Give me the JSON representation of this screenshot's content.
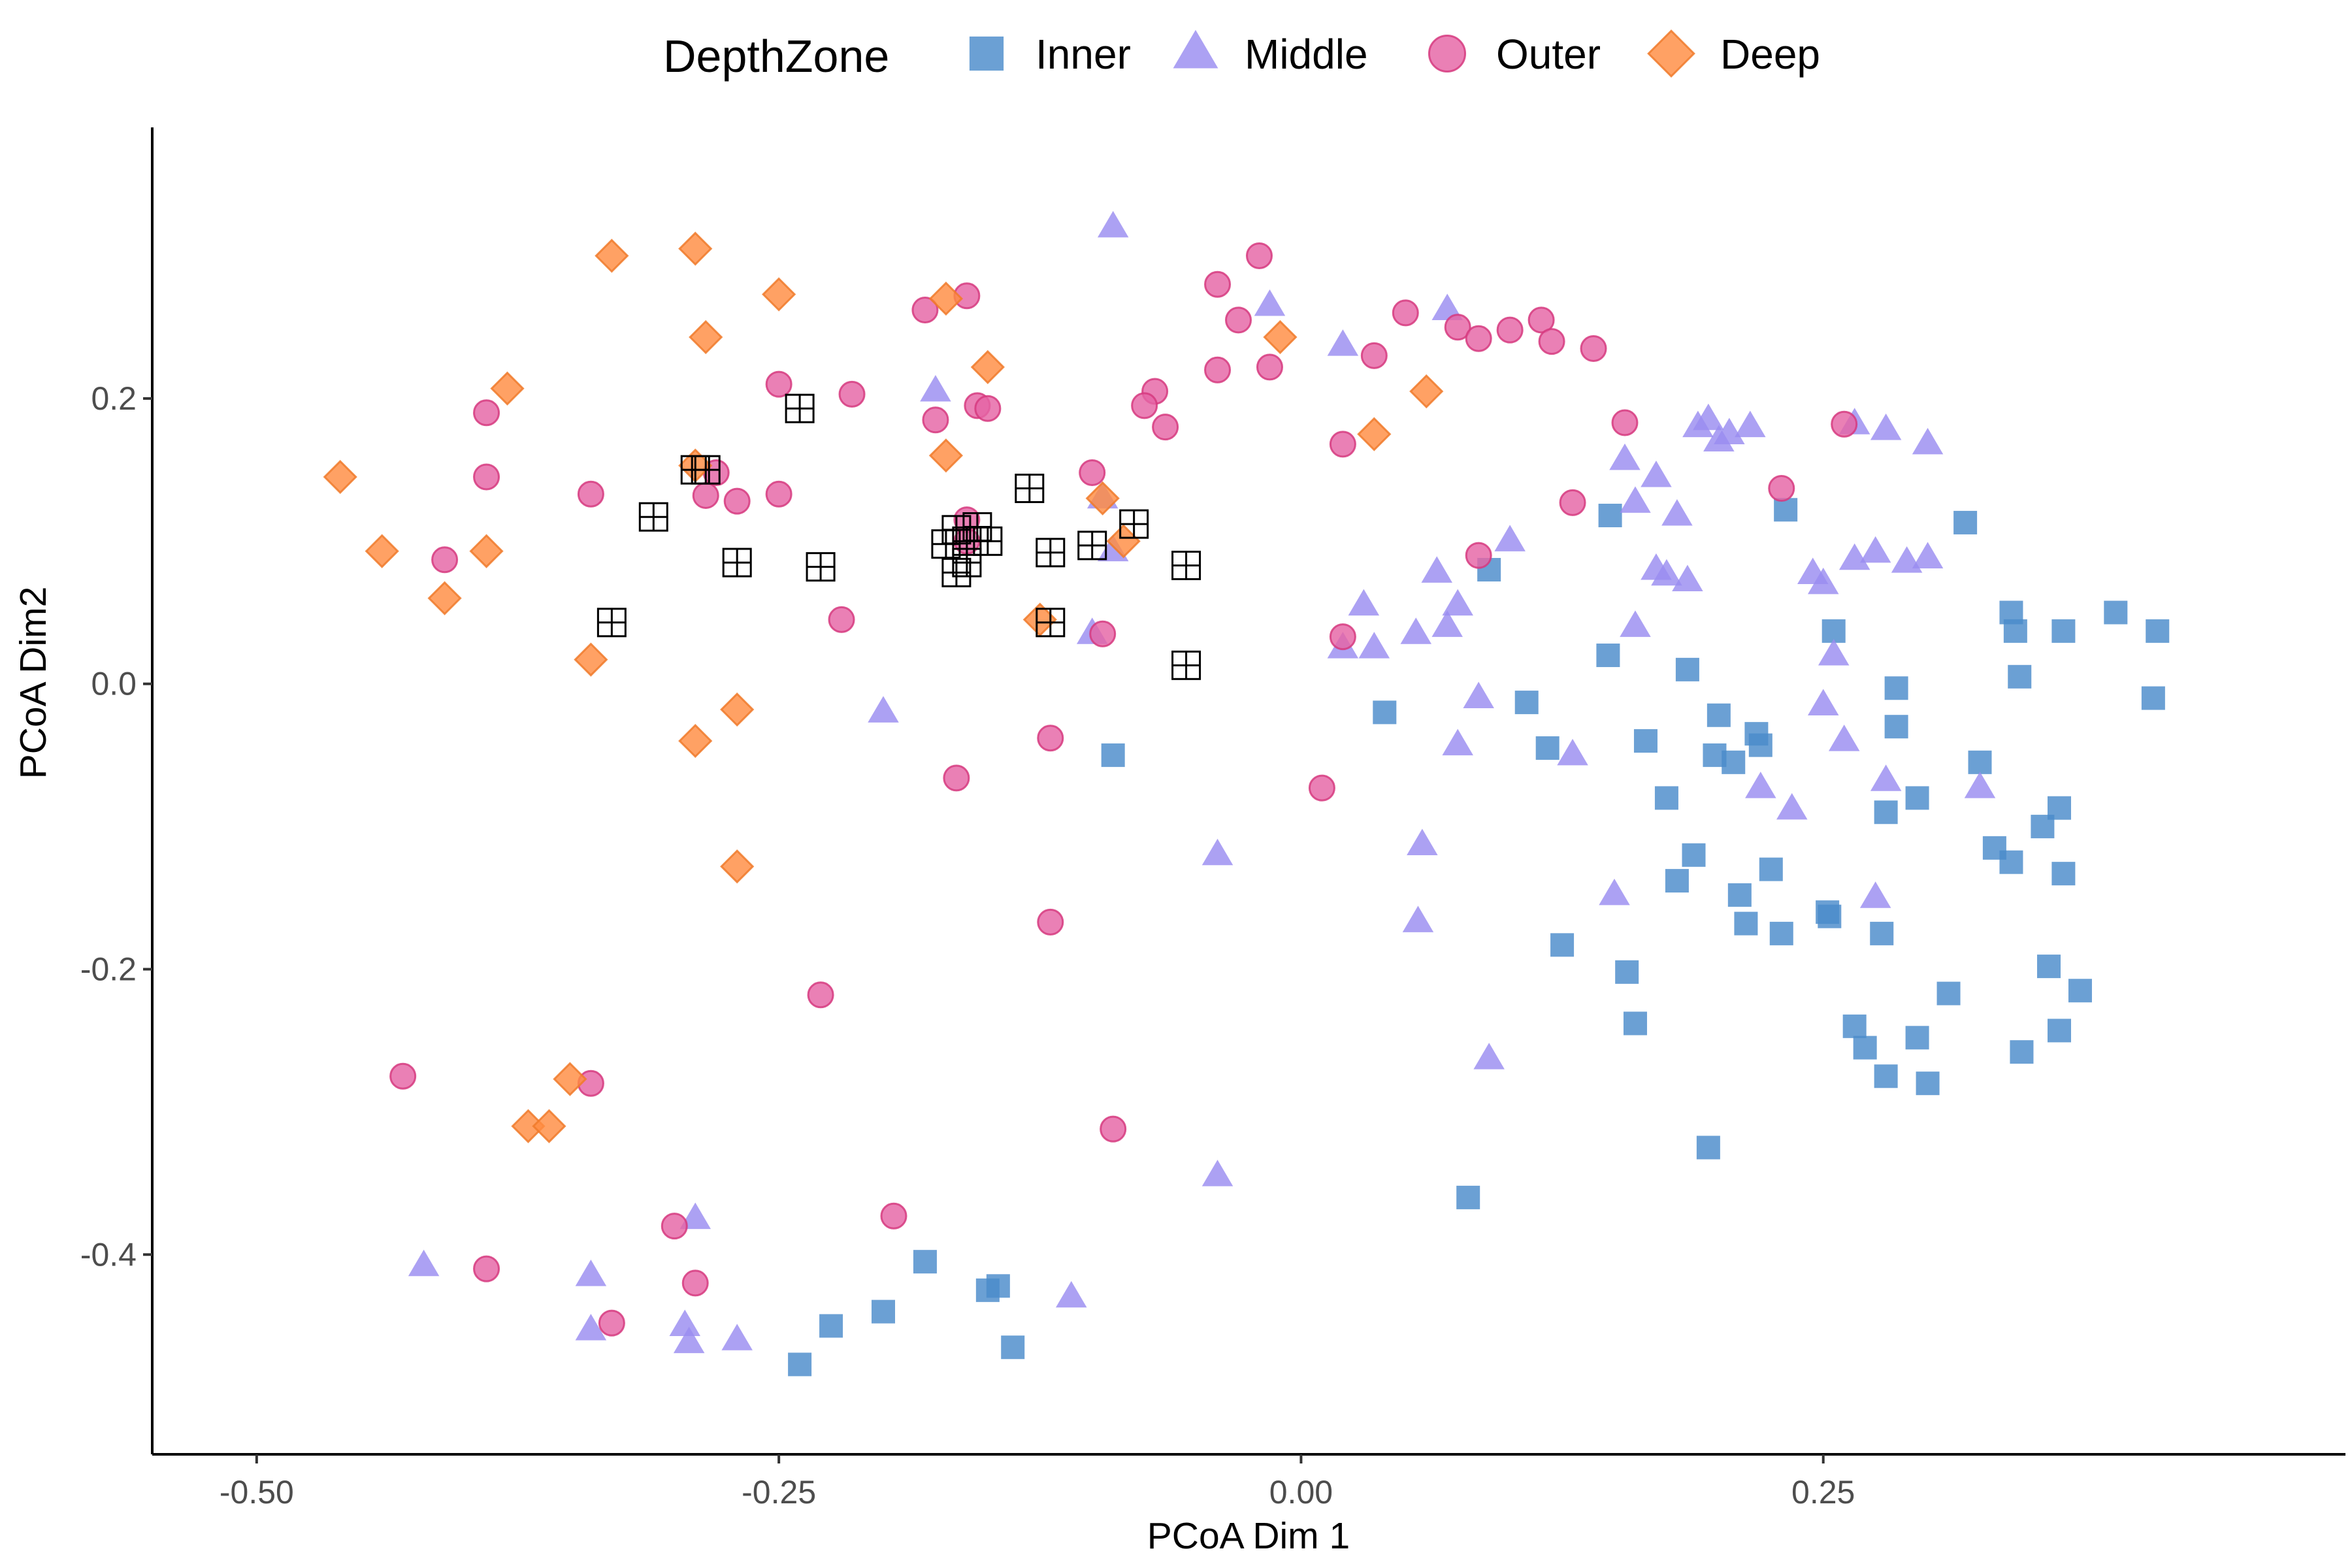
{
  "chart_data": {
    "type": "scatter",
    "title": "",
    "xlabel": "PCoA Dim 1",
    "ylabel": "PCoA Dim2",
    "xlim": [
      -0.55,
      0.5
    ],
    "ylim": [
      -0.54,
      0.39
    ],
    "x_ticks": [
      -0.5,
      -0.25,
      0.0,
      0.25
    ],
    "x_tick_labels": [
      "-0.50",
      "-0.25",
      "0.00",
      "0.25"
    ],
    "y_ticks": [
      -0.4,
      -0.2,
      0.0,
      0.2
    ],
    "y_tick_labels": [
      "-0.4",
      "-0.2",
      "0.0",
      "0.2"
    ],
    "grid": false,
    "legend": {
      "title": "DepthZone",
      "placement": "top",
      "entries": [
        {
          "label": "Inner",
          "shape": "square",
          "color": "#4A8BCB"
        },
        {
          "label": "Middle",
          "shape": "triangle",
          "color": "#9A8CF0"
        },
        {
          "label": "Outer",
          "shape": "circle",
          "color": "#E564A5"
        },
        {
          "label": "Deep",
          "shape": "diamond",
          "color": "#FF8C42"
        }
      ]
    },
    "series": [
      {
        "name": "Inner",
        "shape": "square",
        "color": "#4A8BCB",
        "points": [
          [
            0.295,
            -0.08
          ],
          [
            0.408,
            -0.01
          ],
          [
            0.41,
            0.037
          ],
          [
            0.39,
            0.05
          ],
          [
            0.365,
            0.037
          ],
          [
            0.34,
            0.05
          ],
          [
            0.342,
            0.037
          ],
          [
            0.344,
            0.005
          ],
          [
            0.325,
            -0.055
          ],
          [
            0.332,
            -0.115
          ],
          [
            0.34,
            -0.125
          ],
          [
            0.355,
            -0.1
          ],
          [
            0.363,
            -0.087
          ],
          [
            0.365,
            -0.133
          ],
          [
            0.373,
            -0.215
          ],
          [
            0.358,
            -0.198
          ],
          [
            0.363,
            -0.243
          ],
          [
            0.345,
            -0.258
          ],
          [
            0.31,
            -0.217
          ],
          [
            0.3,
            -0.28
          ],
          [
            0.295,
            -0.248
          ],
          [
            0.28,
            -0.275
          ],
          [
            0.27,
            -0.255
          ],
          [
            0.265,
            -0.24
          ],
          [
            0.278,
            -0.175
          ],
          [
            0.28,
            -0.09
          ],
          [
            0.285,
            -0.03
          ],
          [
            0.285,
            -0.003
          ],
          [
            0.255,
            0.037
          ],
          [
            0.232,
            0.122
          ],
          [
            0.318,
            0.113
          ],
          [
            0.148,
            0.118
          ],
          [
            0.147,
            0.02
          ],
          [
            0.185,
            0.01
          ],
          [
            0.165,
            -0.04
          ],
          [
            0.2,
            -0.022
          ],
          [
            0.218,
            -0.035
          ],
          [
            0.22,
            -0.043
          ],
          [
            0.198,
            -0.05
          ],
          [
            0.207,
            -0.055
          ],
          [
            0.175,
            -0.08
          ],
          [
            0.118,
            -0.045
          ],
          [
            0.108,
            -0.013
          ],
          [
            0.04,
            -0.02
          ],
          [
            0.09,
            0.08
          ],
          [
            0.188,
            -0.12
          ],
          [
            0.18,
            -0.138
          ],
          [
            0.21,
            -0.148
          ],
          [
            0.225,
            -0.13
          ],
          [
            0.213,
            -0.168
          ],
          [
            0.23,
            -0.175
          ],
          [
            0.252,
            -0.16
          ],
          [
            0.253,
            -0.163
          ],
          [
            0.156,
            -0.202
          ],
          [
            0.125,
            -0.183
          ],
          [
            0.16,
            -0.238
          ],
          [
            0.195,
            -0.325
          ],
          [
            0.08,
            -0.36
          ],
          [
            -0.09,
            -0.05
          ],
          [
            -0.18,
            -0.405
          ],
          [
            -0.2,
            -0.44
          ],
          [
            -0.225,
            -0.45
          ],
          [
            -0.24,
            -0.477
          ],
          [
            -0.15,
            -0.425
          ],
          [
            -0.145,
            -0.422
          ],
          [
            -0.138,
            -0.465
          ]
        ]
      },
      {
        "name": "Middle",
        "shape": "triangle",
        "color": "#9A8CF0",
        "points": [
          [
            -0.09,
            0.32
          ],
          [
            -0.015,
            0.265
          ],
          [
            0.02,
            0.237
          ],
          [
            0.07,
            0.262
          ],
          [
            0.28,
            0.178
          ],
          [
            0.265,
            0.182
          ],
          [
            0.19,
            0.18
          ],
          [
            0.195,
            0.185
          ],
          [
            0.215,
            0.18
          ],
          [
            0.2,
            0.17
          ],
          [
            0.205,
            0.175
          ],
          [
            0.3,
            0.168
          ],
          [
            0.155,
            0.157
          ],
          [
            0.17,
            0.145
          ],
          [
            0.16,
            0.127
          ],
          [
            0.18,
            0.118
          ],
          [
            0.3,
            0.088
          ],
          [
            0.275,
            0.092
          ],
          [
            0.265,
            0.087
          ],
          [
            0.29,
            0.085
          ],
          [
            0.245,
            0.077
          ],
          [
            0.25,
            0.07
          ],
          [
            0.17,
            0.08
          ],
          [
            0.175,
            0.076
          ],
          [
            0.185,
            0.072
          ],
          [
            0.1,
            0.1
          ],
          [
            0.065,
            0.078
          ],
          [
            0.075,
            0.055
          ],
          [
            0.03,
            0.055
          ],
          [
            0.035,
            0.025
          ],
          [
            0.055,
            0.035
          ],
          [
            0.07,
            0.04
          ],
          [
            0.02,
            0.025
          ],
          [
            0.16,
            0.04
          ],
          [
            0.255,
            0.02
          ],
          [
            0.25,
            -0.015
          ],
          [
            0.26,
            -0.04
          ],
          [
            0.28,
            -0.068
          ],
          [
            0.22,
            -0.073
          ],
          [
            0.235,
            -0.088
          ],
          [
            0.325,
            -0.073
          ],
          [
            0.275,
            -0.15
          ],
          [
            0.15,
            -0.148
          ],
          [
            0.085,
            -0.01
          ],
          [
            0.075,
            -0.043
          ],
          [
            0.13,
            -0.05
          ],
          [
            0.058,
            -0.113
          ],
          [
            0.056,
            -0.167
          ],
          [
            0.09,
            -0.263
          ],
          [
            -0.04,
            -0.12
          ],
          [
            -0.04,
            -0.345
          ],
          [
            -0.11,
            -0.43
          ],
          [
            -0.2,
            -0.02
          ],
          [
            -0.175,
            0.205
          ],
          [
            -0.095,
            0.13
          ],
          [
            -0.09,
            0.093
          ],
          [
            -0.1,
            0.035
          ],
          [
            -0.42,
            -0.408
          ],
          [
            -0.34,
            -0.415
          ],
          [
            -0.34,
            -0.453
          ],
          [
            -0.29,
            -0.375
          ],
          [
            -0.295,
            -0.45
          ],
          [
            -0.293,
            -0.462
          ],
          [
            -0.27,
            -0.46
          ]
        ]
      },
      {
        "name": "Outer",
        "shape": "circle",
        "color": "#E564A5",
        "points": [
          [
            -0.02,
            0.3
          ],
          [
            -0.04,
            0.28
          ],
          [
            -0.03,
            0.255
          ],
          [
            -0.04,
            0.22
          ],
          [
            -0.015,
            0.222
          ],
          [
            0.05,
            0.26
          ],
          [
            0.035,
            0.23
          ],
          [
            0.075,
            0.25
          ],
          [
            0.085,
            0.242
          ],
          [
            0.1,
            0.248
          ],
          [
            0.115,
            0.255
          ],
          [
            0.12,
            0.24
          ],
          [
            0.14,
            0.235
          ],
          [
            0.02,
            0.168
          ],
          [
            0.13,
            0.127
          ],
          [
            0.155,
            0.183
          ],
          [
            0.26,
            0.182
          ],
          [
            0.23,
            0.137
          ],
          [
            0.085,
            0.09
          ],
          [
            0.02,
            0.033
          ],
          [
            0.01,
            -0.073
          ],
          [
            -0.07,
            0.205
          ],
          [
            -0.075,
            0.195
          ],
          [
            -0.065,
            0.18
          ],
          [
            -0.1,
            0.148
          ],
          [
            -0.095,
            0.035
          ],
          [
            -0.12,
            -0.038
          ],
          [
            -0.12,
            -0.167
          ],
          [
            -0.09,
            -0.312
          ],
          [
            -0.16,
            0.272
          ],
          [
            -0.18,
            0.262
          ],
          [
            -0.155,
            0.195
          ],
          [
            -0.15,
            0.193
          ],
          [
            -0.175,
            0.185
          ],
          [
            -0.16,
            0.115
          ],
          [
            -0.16,
            0.1
          ],
          [
            -0.165,
            -0.066
          ],
          [
            -0.195,
            -0.373
          ],
          [
            -0.215,
            0.203
          ],
          [
            -0.25,
            0.21
          ],
          [
            -0.25,
            0.133
          ],
          [
            -0.27,
            0.128
          ],
          [
            -0.28,
            0.148
          ],
          [
            -0.285,
            0.132
          ],
          [
            -0.22,
            0.045
          ],
          [
            -0.23,
            -0.218
          ],
          [
            -0.3,
            -0.38
          ],
          [
            -0.29,
            -0.42
          ],
          [
            -0.33,
            -0.448
          ],
          [
            -0.34,
            0.133
          ],
          [
            -0.39,
            0.19
          ],
          [
            -0.39,
            0.145
          ],
          [
            -0.41,
            0.087
          ],
          [
            -0.43,
            -0.275
          ],
          [
            -0.39,
            -0.41
          ],
          [
            -0.34,
            -0.28
          ]
        ]
      },
      {
        "name": "Deep",
        "shape": "diamond",
        "color": "#FF8C42",
        "points": [
          [
            -0.33,
            0.3
          ],
          [
            -0.29,
            0.305
          ],
          [
            -0.25,
            0.273
          ],
          [
            -0.285,
            0.243
          ],
          [
            -0.17,
            0.27
          ],
          [
            -0.15,
            0.222
          ],
          [
            -0.38,
            0.207
          ],
          [
            -0.46,
            0.145
          ],
          [
            -0.44,
            0.093
          ],
          [
            -0.39,
            0.093
          ],
          [
            -0.41,
            0.06
          ],
          [
            -0.34,
            0.017
          ],
          [
            -0.29,
            0.153
          ],
          [
            -0.17,
            0.16
          ],
          [
            -0.095,
            0.13
          ],
          [
            -0.085,
            0.1
          ],
          [
            -0.125,
            0.045
          ],
          [
            -0.01,
            0.243
          ],
          [
            0.035,
            0.175
          ],
          [
            0.06,
            0.205
          ],
          [
            -0.27,
            -0.018
          ],
          [
            -0.29,
            -0.04
          ],
          [
            -0.27,
            -0.128
          ],
          [
            -0.35,
            -0.277
          ],
          [
            -0.37,
            -0.31
          ],
          [
            -0.36,
            -0.31
          ]
        ]
      },
      {
        "name": "",
        "shape": "crossed-square",
        "color": "#000000",
        "points": [
          [
            -0.24,
            0.193
          ],
          [
            -0.29,
            0.15
          ],
          [
            -0.285,
            0.15
          ],
          [
            -0.31,
            0.117
          ],
          [
            -0.33,
            0.043
          ],
          [
            -0.27,
            0.085
          ],
          [
            -0.23,
            0.082
          ],
          [
            -0.17,
            0.098
          ],
          [
            -0.165,
            0.108
          ],
          [
            -0.16,
            0.1
          ],
          [
            -0.155,
            0.11
          ],
          [
            -0.15,
            0.1
          ],
          [
            -0.165,
            0.078
          ],
          [
            -0.16,
            0.085
          ],
          [
            -0.13,
            0.137
          ],
          [
            -0.12,
            0.092
          ],
          [
            -0.1,
            0.097
          ],
          [
            -0.08,
            0.112
          ],
          [
            -0.055,
            0.083
          ],
          [
            -0.12,
            0.043
          ],
          [
            -0.055,
            0.013
          ]
        ]
      }
    ]
  }
}
